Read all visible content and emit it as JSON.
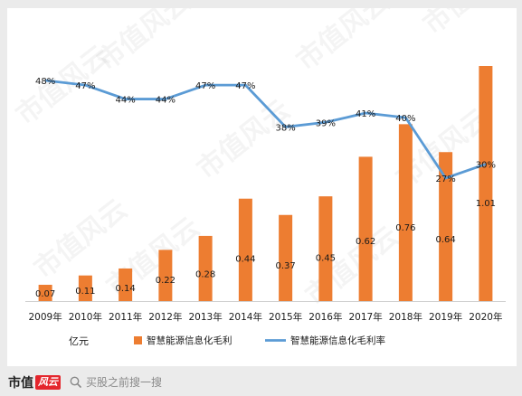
{
  "chart_data": {
    "type": "bar",
    "categories": [
      "2009年",
      "2010年",
      "2011年",
      "2012年",
      "2013年",
      "2014年",
      "2015年",
      "2016年",
      "2017年",
      "2018年",
      "2019年",
      "2020年"
    ],
    "series": [
      {
        "name": "智慧能源信息化毛利",
        "kind": "bar",
        "axis": "left",
        "color": "#ed7d31",
        "values": [
          0.07,
          0.11,
          0.14,
          0.22,
          0.28,
          0.44,
          0.37,
          0.45,
          0.62,
          0.76,
          0.64,
          1.01
        ],
        "labels": [
          "0.07",
          "0.11",
          "0.14",
          "0.22",
          "0.28",
          "0.44",
          "0.37",
          "0.45",
          "0.62",
          "0.76",
          "0.64",
          "1.01"
        ]
      },
      {
        "name": "智慧能源信息化毛利率",
        "kind": "line",
        "axis": "right",
        "color": "#5b9bd5",
        "values": [
          48,
          47,
          44,
          44,
          47,
          47,
          38,
          39,
          41,
          40,
          27,
          30
        ],
        "labels": [
          "48%",
          "47%",
          "44%",
          "44%",
          "47%",
          "47%",
          "38%",
          "39%",
          "41%",
          "40%",
          "27%",
          "30%"
        ]
      }
    ],
    "ylabel": "亿元",
    "ylim": [
      0,
      1.2
    ],
    "y2lim": [
      0,
      60
    ],
    "grid": false,
    "legend": "bottom"
  },
  "watermark": "市值风云",
  "footer": {
    "brand_name": "市值",
    "brand_badge": "风云",
    "search_placeholder": "买股之前搜一搜"
  },
  "colors": {
    "bar": "#ed7d31",
    "line": "#5b9bd5",
    "background": "#ebebeb"
  }
}
